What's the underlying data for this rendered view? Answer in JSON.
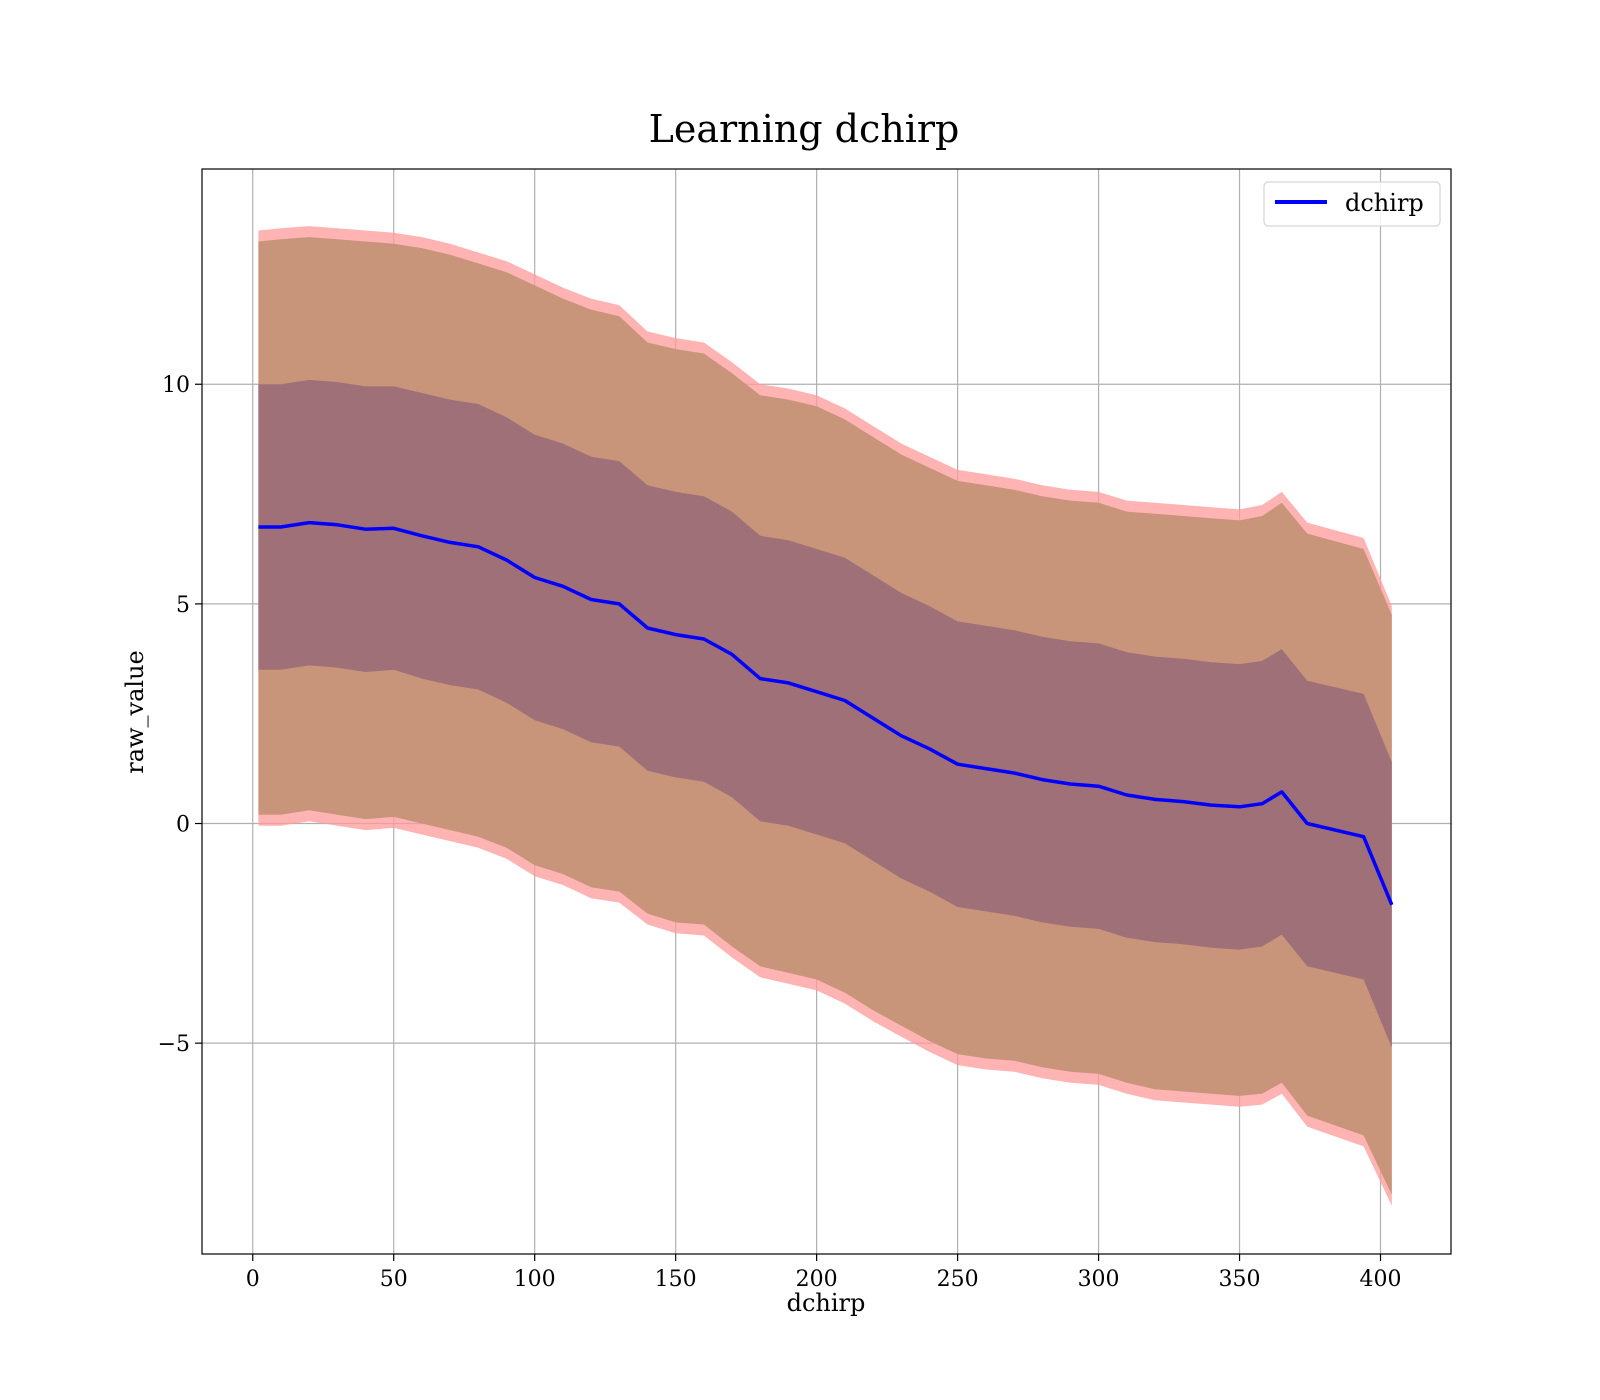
{
  "chart_data": {
    "type": "area",
    "title": "Learning dchirp",
    "xlabel": "dchirp",
    "ylabel": "raw_value",
    "xlim": [
      -18,
      425
    ],
    "ylim": [
      -9.8,
      14.9
    ],
    "x_ticks": [
      0,
      50,
      100,
      150,
      200,
      250,
      300,
      350,
      400
    ],
    "x_tick_labels": [
      "0",
      "50",
      "100",
      "150",
      "200",
      "250",
      "300",
      "350",
      "400"
    ],
    "y_ticks": [
      -5,
      0,
      5,
      10
    ],
    "y_tick_labels": [
      "−5",
      "0",
      "5",
      "10"
    ],
    "grid": true,
    "legend": {
      "position": "top-right",
      "entries": [
        "dchirp"
      ]
    },
    "colors": {
      "line": "#0000ff",
      "band_outer": "#ff9999",
      "band_mid": "#c8947a",
      "band_inner": "#a07078"
    },
    "x": [
      2,
      10,
      20,
      30,
      40,
      50,
      60,
      70,
      80,
      90,
      100,
      110,
      120,
      130,
      140,
      150,
      160,
      170,
      180,
      190,
      200,
      210,
      220,
      230,
      240,
      250,
      260,
      270,
      280,
      290,
      300,
      310,
      320,
      330,
      340,
      350,
      358,
      365,
      374,
      394,
      404
    ],
    "series": [
      {
        "name": "dchirp",
        "values": [
          6.75,
          6.75,
          6.85,
          6.8,
          6.7,
          6.72,
          6.55,
          6.4,
          6.3,
          6.0,
          5.6,
          5.4,
          5.1,
          5.0,
          4.45,
          4.3,
          4.2,
          3.85,
          3.3,
          3.2,
          3.0,
          2.8,
          2.4,
          2.0,
          1.7,
          1.35,
          1.25,
          1.15,
          1.0,
          0.9,
          0.85,
          0.65,
          0.55,
          0.5,
          0.42,
          0.38,
          0.45,
          0.72,
          0.0,
          -0.3,
          -1.85
        ]
      }
    ],
    "bands": [
      {
        "upper": [
          13.5,
          13.55,
          13.6,
          13.55,
          13.5,
          13.45,
          13.35,
          13.2,
          13.0,
          12.8,
          12.5,
          12.2,
          11.95,
          11.8,
          11.2,
          11.05,
          10.95,
          10.5,
          10.0,
          9.9,
          9.75,
          9.45,
          9.05,
          8.65,
          8.35,
          8.05,
          7.95,
          7.85,
          7.7,
          7.6,
          7.55,
          7.35,
          7.3,
          7.25,
          7.2,
          7.15,
          7.25,
          7.55,
          6.85,
          6.5,
          4.95
        ],
        "lower": [
          -0.05,
          -0.05,
          0.05,
          -0.05,
          -0.15,
          -0.1,
          -0.25,
          -0.4,
          -0.55,
          -0.8,
          -1.2,
          -1.4,
          -1.7,
          -1.8,
          -2.3,
          -2.5,
          -2.55,
          -3.05,
          -3.5,
          -3.65,
          -3.8,
          -4.1,
          -4.5,
          -4.85,
          -5.2,
          -5.5,
          -5.6,
          -5.65,
          -5.8,
          -5.9,
          -5.95,
          -6.15,
          -6.3,
          -6.35,
          -6.4,
          -6.45,
          -6.4,
          -6.15,
          -6.9,
          -7.35,
          -8.7
        ]
      },
      {
        "upper": [
          13.25,
          13.3,
          13.35,
          13.3,
          13.25,
          13.2,
          13.1,
          12.95,
          12.75,
          12.55,
          12.25,
          11.95,
          11.7,
          11.55,
          10.95,
          10.8,
          10.7,
          10.25,
          9.75,
          9.65,
          9.5,
          9.2,
          8.8,
          8.4,
          8.1,
          7.8,
          7.7,
          7.6,
          7.45,
          7.35,
          7.3,
          7.1,
          7.05,
          7.0,
          6.95,
          6.9,
          7.0,
          7.3,
          6.6,
          6.25,
          4.75
        ],
        "lower": [
          0.2,
          0.2,
          0.3,
          0.2,
          0.1,
          0.15,
          0.0,
          -0.15,
          -0.3,
          -0.55,
          -0.95,
          -1.15,
          -1.45,
          -1.55,
          -2.05,
          -2.25,
          -2.3,
          -2.8,
          -3.25,
          -3.4,
          -3.55,
          -3.85,
          -4.25,
          -4.6,
          -4.95,
          -5.25,
          -5.35,
          -5.4,
          -5.55,
          -5.65,
          -5.7,
          -5.9,
          -6.05,
          -6.1,
          -6.15,
          -6.2,
          -6.15,
          -5.9,
          -6.65,
          -7.1,
          -8.45
        ]
      },
      {
        "upper": [
          10.0,
          10.0,
          10.1,
          10.05,
          9.95,
          9.95,
          9.8,
          9.65,
          9.55,
          9.25,
          8.85,
          8.65,
          8.35,
          8.25,
          7.7,
          7.55,
          7.45,
          7.1,
          6.55,
          6.45,
          6.25,
          6.05,
          5.65,
          5.25,
          4.95,
          4.6,
          4.5,
          4.4,
          4.25,
          4.15,
          4.1,
          3.9,
          3.8,
          3.75,
          3.67,
          3.63,
          3.7,
          3.97,
          3.25,
          2.95,
          1.4
        ],
        "lower": [
          3.5,
          3.5,
          3.6,
          3.55,
          3.45,
          3.5,
          3.3,
          3.15,
          3.05,
          2.75,
          2.35,
          2.15,
          1.85,
          1.75,
          1.2,
          1.05,
          0.95,
          0.6,
          0.05,
          -0.05,
          -0.25,
          -0.45,
          -0.85,
          -1.25,
          -1.55,
          -1.9,
          -2.0,
          -2.1,
          -2.25,
          -2.35,
          -2.4,
          -2.6,
          -2.7,
          -2.75,
          -2.83,
          -2.87,
          -2.8,
          -2.53,
          -3.25,
          -3.55,
          -5.1
        ]
      }
    ]
  }
}
